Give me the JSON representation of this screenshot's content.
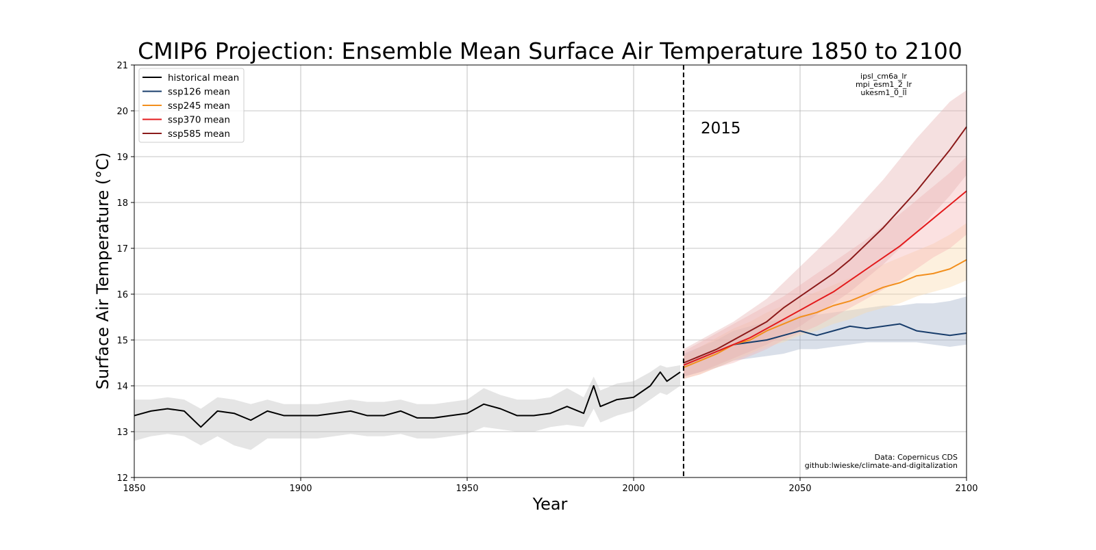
{
  "chart_data": {
    "type": "line",
    "title": "CMIP6 Projection: Ensemble Mean Surface Air Temperature 1850 to 2100",
    "xlabel": "Year",
    "ylabel": "Surface Air Temperature (°C)",
    "xlim": [
      1850,
      2100
    ],
    "ylim": [
      12,
      21
    ],
    "xticks": [
      1850,
      1900,
      1950,
      2000,
      2050,
      2100
    ],
    "yticks": [
      12,
      13,
      14,
      15,
      16,
      17,
      18,
      19,
      20,
      21
    ],
    "grid": true,
    "legend_position": "top-left",
    "vline": {
      "x": 2015,
      "label": "2015"
    },
    "models_annotation": [
      "ipsl_cm6a_lr",
      "mpi_esm1_2_lr",
      "ukesm1_0_ll"
    ],
    "source_annotation": [
      "Data: Copernicus CDS",
      "github:lwieske/climate-and-digitalization"
    ],
    "series": [
      {
        "name": "historical mean",
        "color": "#000000",
        "band_color": "#bdbdbd",
        "x": [
          1850,
          1855,
          1860,
          1865,
          1870,
          1875,
          1880,
          1885,
          1890,
          1895,
          1900,
          1905,
          1910,
          1915,
          1920,
          1925,
          1930,
          1935,
          1940,
          1945,
          1950,
          1955,
          1960,
          1965,
          1970,
          1975,
          1980,
          1985,
          1988,
          1990,
          1995,
          2000,
          2005,
          2008,
          2010,
          2014
        ],
        "values": [
          13.35,
          13.45,
          13.5,
          13.45,
          13.1,
          13.45,
          13.4,
          13.25,
          13.45,
          13.35,
          13.35,
          13.35,
          13.4,
          13.45,
          13.35,
          13.35,
          13.45,
          13.3,
          13.3,
          13.35,
          13.4,
          13.6,
          13.5,
          13.35,
          13.35,
          13.4,
          13.55,
          13.4,
          14.0,
          13.55,
          13.7,
          13.75,
          14.0,
          14.3,
          14.1,
          14.3
        ],
        "lower": [
          12.8,
          12.9,
          12.95,
          12.9,
          12.7,
          12.9,
          12.7,
          12.6,
          12.85,
          12.85,
          12.85,
          12.85,
          12.9,
          12.95,
          12.9,
          12.9,
          12.95,
          12.85,
          12.85,
          12.9,
          12.95,
          13.1,
          13.05,
          13.0,
          13.0,
          13.1,
          13.15,
          13.1,
          13.5,
          13.2,
          13.35,
          13.45,
          13.7,
          13.85,
          13.8,
          14.0
        ],
        "upper": [
          13.7,
          13.7,
          13.75,
          13.7,
          13.5,
          13.75,
          13.7,
          13.6,
          13.7,
          13.6,
          13.6,
          13.6,
          13.65,
          13.7,
          13.65,
          13.65,
          13.7,
          13.6,
          13.6,
          13.65,
          13.7,
          13.95,
          13.8,
          13.7,
          13.7,
          13.75,
          13.95,
          13.75,
          14.2,
          13.9,
          14.05,
          14.1,
          14.3,
          14.45,
          14.4,
          14.45
        ]
      },
      {
        "name": "ssp126 mean",
        "color": "#173c6b",
        "band_color": "#9fb0c8",
        "x": [
          2015,
          2020,
          2025,
          2030,
          2035,
          2040,
          2045,
          2050,
          2055,
          2060,
          2065,
          2070,
          2075,
          2080,
          2085,
          2090,
          2095,
          2100
        ],
        "values": [
          14.45,
          14.6,
          14.75,
          14.9,
          14.95,
          15.0,
          15.1,
          15.2,
          15.1,
          15.2,
          15.3,
          15.25,
          15.3,
          15.35,
          15.2,
          15.15,
          15.1,
          15.15
        ],
        "lower": [
          14.2,
          14.3,
          14.4,
          14.55,
          14.6,
          14.65,
          14.7,
          14.8,
          14.8,
          14.85,
          14.9,
          14.95,
          14.95,
          14.95,
          14.95,
          14.9,
          14.85,
          14.9
        ],
        "upper": [
          14.7,
          14.85,
          15.0,
          15.2,
          15.3,
          15.4,
          15.45,
          15.55,
          15.55,
          15.6,
          15.65,
          15.7,
          15.75,
          15.75,
          15.8,
          15.8,
          15.85,
          15.95
        ]
      },
      {
        "name": "ssp245 mean",
        "color": "#f28e1c",
        "band_color": "#fbd9ad",
        "x": [
          2015,
          2020,
          2025,
          2030,
          2035,
          2040,
          2045,
          2050,
          2055,
          2060,
          2065,
          2070,
          2075,
          2080,
          2085,
          2090,
          2095,
          2100
        ],
        "values": [
          14.4,
          14.55,
          14.7,
          14.9,
          15.0,
          15.2,
          15.35,
          15.5,
          15.6,
          15.75,
          15.85,
          16.0,
          16.15,
          16.25,
          16.4,
          16.45,
          16.55,
          16.75
        ],
        "lower": [
          14.15,
          14.25,
          14.4,
          14.55,
          14.7,
          14.85,
          14.95,
          15.1,
          15.2,
          15.35,
          15.45,
          15.6,
          15.7,
          15.8,
          15.95,
          16.05,
          16.15,
          16.3
        ],
        "upper": [
          14.65,
          14.85,
          15.05,
          15.25,
          15.4,
          15.6,
          15.75,
          15.9,
          16.05,
          16.2,
          16.35,
          16.5,
          16.65,
          16.8,
          16.95,
          17.1,
          17.3,
          17.55
        ]
      },
      {
        "name": "ssp370 mean",
        "color": "#e31a1c",
        "band_color": "#f6b3b3",
        "x": [
          2015,
          2020,
          2025,
          2030,
          2035,
          2040,
          2045,
          2050,
          2055,
          2060,
          2065,
          2070,
          2075,
          2080,
          2085,
          2090,
          2095,
          2100
        ],
        "values": [
          14.45,
          14.6,
          14.75,
          14.9,
          15.05,
          15.25,
          15.45,
          15.65,
          15.85,
          16.05,
          16.3,
          16.55,
          16.8,
          17.05,
          17.35,
          17.65,
          17.95,
          18.25
        ],
        "lower": [
          14.15,
          14.25,
          14.4,
          14.5,
          14.65,
          14.8,
          15.0,
          15.15,
          15.3,
          15.5,
          15.7,
          15.9,
          16.1,
          16.3,
          16.55,
          16.8,
          17.0,
          17.3
        ],
        "upper": [
          14.75,
          14.95,
          15.15,
          15.35,
          15.55,
          15.75,
          15.95,
          16.2,
          16.45,
          16.7,
          16.95,
          17.2,
          17.5,
          17.75,
          18.05,
          18.35,
          18.65,
          19.0
        ]
      },
      {
        "name": "ssp585 mean",
        "color": "#8b1a1a",
        "band_color": "#e7b1b1",
        "x": [
          2015,
          2020,
          2025,
          2030,
          2035,
          2040,
          2045,
          2050,
          2055,
          2060,
          2065,
          2070,
          2075,
          2080,
          2085,
          2090,
          2095,
          2100
        ],
        "values": [
          14.5,
          14.65,
          14.8,
          15.0,
          15.2,
          15.4,
          15.7,
          15.95,
          16.2,
          16.45,
          16.75,
          17.1,
          17.45,
          17.85,
          18.25,
          18.7,
          19.15,
          19.65
        ],
        "lower": [
          14.2,
          14.3,
          14.45,
          14.6,
          14.75,
          14.9,
          15.1,
          15.3,
          15.55,
          15.8,
          16.05,
          16.35,
          16.65,
          17.0,
          17.35,
          17.75,
          18.15,
          18.6
        ],
        "upper": [
          14.8,
          15.0,
          15.2,
          15.4,
          15.65,
          15.9,
          16.25,
          16.6,
          16.95,
          17.3,
          17.7,
          18.1,
          18.5,
          18.95,
          19.4,
          19.8,
          20.2,
          20.45
        ]
      }
    ]
  }
}
